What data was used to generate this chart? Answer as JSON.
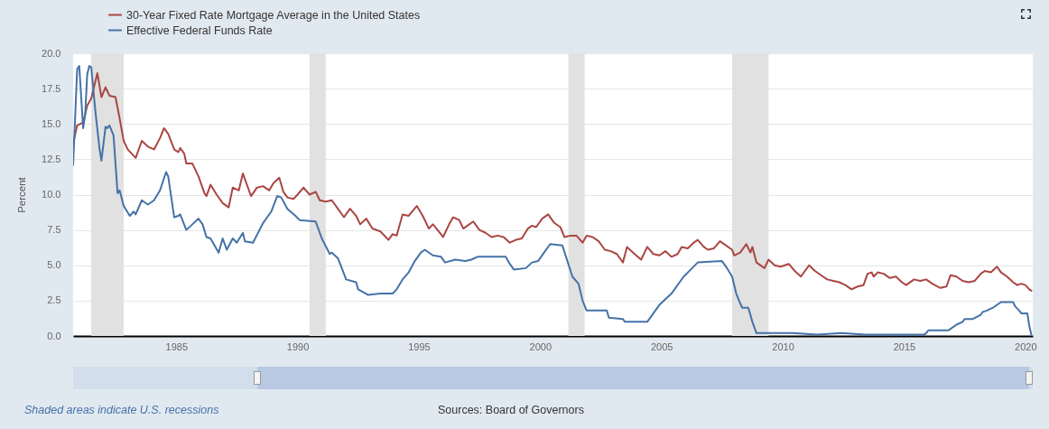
{
  "chart_data": {
    "type": "line",
    "ylabel": "Percent",
    "legend": "top left",
    "grid": "y",
    "xlim": [
      "1980-10",
      "2020-04-22"
    ],
    "xticks": [
      "1985",
      "1990",
      "1995",
      "2000",
      "2005",
      "2010",
      "2015",
      "2020"
    ],
    "ylim": [
      0,
      20
    ],
    "yticks": [
      {
        "value": 0,
        "label": "0.0"
      },
      2.5,
      {
        "value": 5,
        "label": "5.0"
      },
      7.5,
      {
        "value": 10,
        "label": "10.0"
      },
      12.5,
      {
        "value": 15,
        "label": "15.0"
      },
      17.5,
      {
        "value": 20,
        "label": "20.0"
      }
    ],
    "bands": [
      {
        "axis": "x",
        "from": "1981-07",
        "to": "1982-11",
        "color": "#e1e1e1"
      },
      {
        "axis": "x",
        "from": "1990-07",
        "to": "1991-03",
        "color": "#e1e1e1"
      },
      {
        "axis": "x",
        "from": "2001-03",
        "to": "2001-11",
        "color": "#e1e1e1"
      },
      {
        "axis": "x",
        "from": "2007-12",
        "to": "2009-06",
        "color": "#e1e1e1"
      }
    ],
    "series": [
      {
        "name": "30-Year Fixed Rate Mortgage Average in the United States",
        "color": "#aa4643",
        "x": [
          "1980-10",
          "1980-12",
          "1981-03",
          "1981-05",
          "1981-07",
          "1981-10",
          "1981-12",
          "1982-02",
          "1982-04",
          "1982-07",
          "1982-09",
          "1982-11",
          "1983-01",
          "1983-05",
          "1983-08",
          "1983-11",
          "1984-02",
          "1984-05",
          "1984-07",
          "1984-09",
          "1984-12",
          "1985-02",
          "1985-03",
          "1985-05",
          "1985-06",
          "1985-09",
          "1985-12",
          "1986-03",
          "1986-04",
          "1986-06",
          "1986-09",
          "1986-12",
          "1987-03",
          "1987-05",
          "1987-08",
          "1987-10",
          "1987-12",
          "1988-02",
          "1988-05",
          "1988-08",
          "1988-11",
          "1989-01",
          "1989-04",
          "1989-06",
          "1989-08",
          "1989-11",
          "1990-01",
          "1990-04",
          "1990-07",
          "1990-10",
          "1990-12",
          "1991-03",
          "1991-06",
          "1991-09",
          "1991-12",
          "1992-03",
          "1992-06",
          "1992-08",
          "1992-11",
          "1993-02",
          "1993-06",
          "1993-10",
          "1993-12",
          "1994-02",
          "1994-05",
          "1994-08",
          "1994-12",
          "1995-03",
          "1995-06",
          "1995-08",
          "1995-12",
          "1996-01",
          "1996-04",
          "1996-06",
          "1996-09",
          "1996-11",
          "1997-01",
          "1997-04",
          "1997-07",
          "1997-10",
          "1998-01",
          "1998-04",
          "1998-07",
          "1998-10",
          "1999-01",
          "1999-04",
          "1999-07",
          "1999-09",
          "1999-11",
          "2000-02",
          "2000-05",
          "2000-08",
          "2000-11",
          "2001-01",
          "2001-04",
          "2001-07",
          "2001-10",
          "2001-12",
          "2002-03",
          "2002-06",
          "2002-09",
          "2002-12",
          "2003-03",
          "2003-06",
          "2003-08",
          "2003-11",
          "2004-03",
          "2004-06",
          "2004-09",
          "2004-12",
          "2005-03",
          "2005-06",
          "2005-09",
          "2005-11",
          "2006-02",
          "2006-05",
          "2006-07",
          "2006-10",
          "2006-12",
          "2007-03",
          "2007-06",
          "2007-09",
          "2007-12",
          "2008-01",
          "2008-04",
          "2008-07",
          "2008-09",
          "2008-10",
          "2008-12",
          "2009-04",
          "2009-06",
          "2009-09",
          "2009-12",
          "2010-04",
          "2010-07",
          "2010-10",
          "2011-02",
          "2011-05",
          "2011-08",
          "2011-11",
          "2012-02",
          "2012-05",
          "2012-08",
          "2012-11",
          "2013-02",
          "2013-05",
          "2013-07",
          "2013-09",
          "2013-10",
          "2013-12",
          "2014-03",
          "2014-06",
          "2014-09",
          "2014-12",
          "2015-02",
          "2015-06",
          "2015-09",
          "2015-12",
          "2016-03",
          "2016-07",
          "2016-10",
          "2016-12",
          "2017-03",
          "2017-06",
          "2017-09",
          "2017-12",
          "2018-03",
          "2018-05",
          "2018-08",
          "2018-11",
          "2019-01",
          "2019-04",
          "2019-07",
          "2019-09",
          "2019-11",
          "2020-01",
          "2020-03",
          "2020-04"
        ],
        "values": [
          13.6,
          14.9,
          15.1,
          16.3,
          16.8,
          18.6,
          16.9,
          17.6,
          17.0,
          16.9,
          15.4,
          13.8,
          13.2,
          12.6,
          13.8,
          13.4,
          13.2,
          14.0,
          14.7,
          14.3,
          13.2,
          13.0,
          13.3,
          12.9,
          12.2,
          12.2,
          11.3,
          10.1,
          9.9,
          10.7,
          10.0,
          9.4,
          9.1,
          10.5,
          10.3,
          11.5,
          10.7,
          9.9,
          10.5,
          10.6,
          10.3,
          10.8,
          11.2,
          10.2,
          9.8,
          9.7,
          10.0,
          10.5,
          10.0,
          10.2,
          9.6,
          9.5,
          9.6,
          9.0,
          8.4,
          9.0,
          8.5,
          7.9,
          8.3,
          7.6,
          7.4,
          6.8,
          7.2,
          7.1,
          8.6,
          8.5,
          9.2,
          8.5,
          7.6,
          7.9,
          7.2,
          7.0,
          7.9,
          8.4,
          8.2,
          7.6,
          7.8,
          8.1,
          7.5,
          7.3,
          7.0,
          7.1,
          7.0,
          6.6,
          6.8,
          6.9,
          7.6,
          7.8,
          7.7,
          8.3,
          8.6,
          8.0,
          7.7,
          7.0,
          7.1,
          7.1,
          6.6,
          7.1,
          7.0,
          6.7,
          6.1,
          6.0,
          5.8,
          5.2,
          6.3,
          5.9,
          5.4,
          6.3,
          5.8,
          5.7,
          6.0,
          5.6,
          5.8,
          6.3,
          6.2,
          6.6,
          6.8,
          6.3,
          6.1,
          6.2,
          6.7,
          6.4,
          6.1,
          5.7,
          5.9,
          6.5,
          5.9,
          6.3,
          5.2,
          4.8,
          5.4,
          5.0,
          4.9,
          5.1,
          4.6,
          4.2,
          5.0,
          4.6,
          4.3,
          4.0,
          3.9,
          3.8,
          3.6,
          3.3,
          3.5,
          3.6,
          4.4,
          4.5,
          4.2,
          4.5,
          4.4,
          4.1,
          4.2,
          3.8,
          3.6,
          4.0,
          3.9,
          4.0,
          3.7,
          3.4,
          3.5,
          4.3,
          4.2,
          3.9,
          3.8,
          3.9,
          4.4,
          4.6,
          4.5,
          4.9,
          4.5,
          4.2,
          3.8,
          3.6,
          3.7,
          3.6,
          3.3,
          3.2
        ]
      },
      {
        "name": "Effective Federal Funds Rate",
        "color": "#4572a7",
        "x": [
          "1980-10",
          "1980-12",
          "1981-01",
          "1981-03",
          "1981-04",
          "1981-05",
          "1981-06",
          "1981-07",
          "1981-09",
          "1981-11",
          "1981-12",
          "1982-02",
          "1982-03",
          "1982-04",
          "1982-06",
          "1982-08",
          "1982-09",
          "1982-11",
          "1983-02",
          "1983-04",
          "1983-05",
          "1983-08",
          "1983-11",
          "1984-02",
          "1984-05",
          "1984-08",
          "1984-09",
          "1984-12",
          "1985-02",
          "1985-03",
          "1985-06",
          "1985-09",
          "1985-12",
          "1986-02",
          "1986-04",
          "1986-06",
          "1986-10",
          "1986-12",
          "1987-02",
          "1987-05",
          "1987-07",
          "1987-10",
          "1987-11",
          "1988-03",
          "1988-08",
          "1988-12",
          "1989-03",
          "1989-05",
          "1989-08",
          "1989-12",
          "1990-02",
          "1990-10",
          "1991-01",
          "1991-05",
          "1991-06",
          "1991-09",
          "1991-12",
          "1992-01",
          "1992-06",
          "1992-07",
          "1992-12",
          "1993-06",
          "1993-12",
          "1994-02",
          "1994-05",
          "1994-08",
          "1994-11",
          "1995-02",
          "1995-04",
          "1995-08",
          "1995-12",
          "1996-02",
          "1996-07",
          "1996-12",
          "1997-03",
          "1997-06",
          "1998-08",
          "1998-10",
          "1998-12",
          "1999-06",
          "1999-09",
          "1999-12",
          "2000-03",
          "2000-06",
          "2000-12",
          "2001-02",
          "2001-05",
          "2001-08",
          "2001-10",
          "2001-12",
          "2002-10",
          "2002-11",
          "2003-06",
          "2003-07",
          "2004-06",
          "2004-12",
          "2005-06",
          "2005-12",
          "2006-07",
          "2007-07",
          "2007-09",
          "2007-12",
          "2008-02",
          "2008-04",
          "2008-05",
          "2008-08",
          "2008-10",
          "2008-12",
          "2009-06",
          "2010-06",
          "2011-06",
          "2012-06",
          "2013-06",
          "2014-06",
          "2015-11",
          "2015-12",
          "2016-01",
          "2016-11",
          "2016-12",
          "2017-03",
          "2017-06",
          "2017-07",
          "2017-11",
          "2018-03",
          "2018-04",
          "2018-06",
          "2018-09",
          "2018-12",
          "2019-01",
          "2019-07",
          "2019-08",
          "2019-10",
          "2019-11",
          "2020-02",
          "2020-03",
          "2020-04"
        ],
        "values": [
          12.1,
          18.9,
          19.1,
          14.7,
          15.7,
          18.5,
          19.1,
          19.0,
          15.9,
          13.3,
          12.4,
          14.8,
          14.7,
          14.9,
          14.2,
          10.1,
          10.3,
          9.2,
          8.5,
          8.8,
          8.6,
          9.6,
          9.3,
          9.6,
          10.3,
          11.6,
          11.3,
          8.4,
          8.5,
          8.6,
          7.5,
          7.9,
          8.3,
          7.9,
          7.0,
          6.9,
          5.9,
          6.9,
          6.1,
          6.9,
          6.6,
          7.3,
          6.7,
          6.6,
          8.0,
          8.8,
          9.9,
          9.8,
          9.0,
          8.5,
          8.2,
          8.1,
          6.9,
          5.8,
          5.9,
          5.5,
          4.4,
          4.0,
          3.8,
          3.3,
          2.9,
          3.0,
          3.0,
          3.3,
          4.0,
          4.5,
          5.3,
          5.9,
          6.1,
          5.7,
          5.6,
          5.2,
          5.4,
          5.3,
          5.4,
          5.6,
          5.6,
          5.1,
          4.7,
          4.8,
          5.2,
          5.3,
          5.9,
          6.5,
          6.4,
          5.5,
          4.2,
          3.7,
          2.5,
          1.8,
          1.8,
          1.3,
          1.2,
          1.0,
          1.0,
          2.2,
          3.0,
          4.2,
          5.2,
          5.3,
          4.9,
          4.2,
          3.0,
          2.3,
          2.0,
          2.0,
          1.0,
          0.2,
          0.2,
          0.2,
          0.1,
          0.2,
          0.1,
          0.1,
          0.1,
          0.2,
          0.4,
          0.4,
          0.5,
          0.8,
          1.0,
          1.2,
          1.2,
          1.5,
          1.7,
          1.8,
          2.0,
          2.3,
          2.4,
          2.4,
          2.1,
          1.8,
          1.6,
          1.6,
          0.7,
          0.1
        ]
      }
    ],
    "annotations": [
      "Shaded areas indicate U.S. recessions",
      "Sources: Board of Governors"
    ]
  }
}
